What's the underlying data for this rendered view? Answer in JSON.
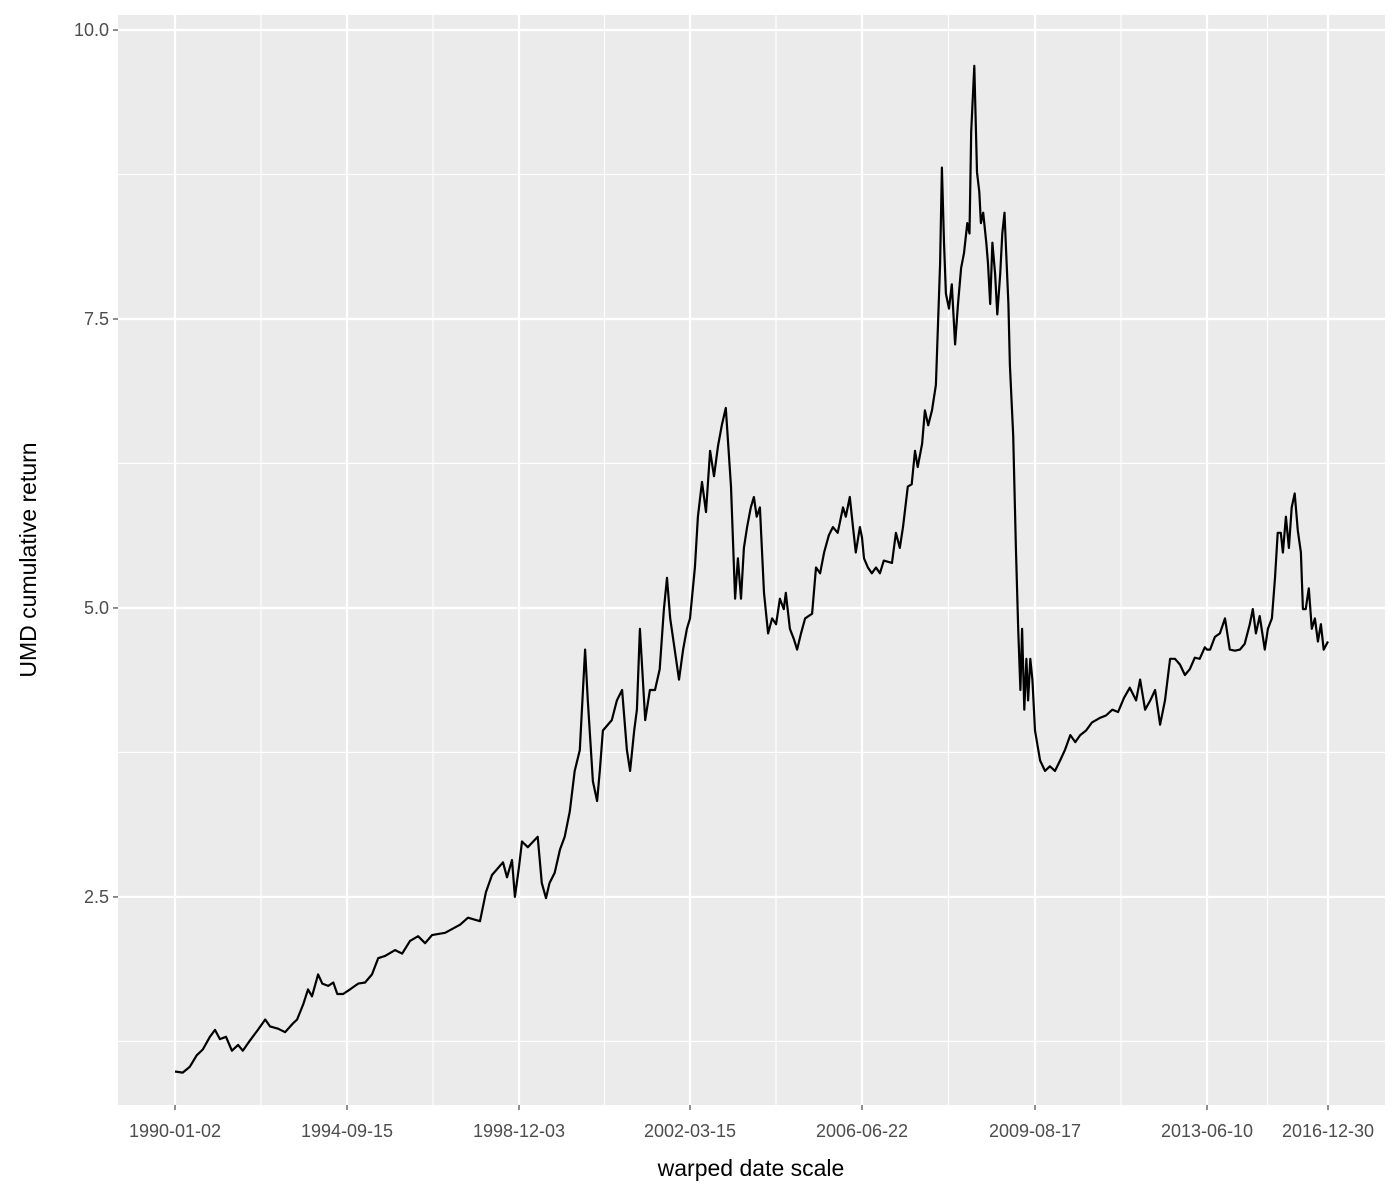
{
  "chart_data": {
    "type": "line",
    "xlabel": "warped date scale",
    "ylabel": "UMD cumulative return",
    "x_scale": "warped date",
    "x_ticks": [
      "1990-01-02",
      "1994-09-15",
      "1998-12-03",
      "2002-03-15",
      "2006-06-22",
      "2009-08-17",
      "2013-06-10",
      "2016-12-30"
    ],
    "y_ticks": [
      2.5,
      5.0,
      7.5,
      10.0
    ],
    "y_tick_labels": [
      "2.5",
      "5.0",
      "7.5",
      "10.0"
    ],
    "y_minor_ticks": [
      1.25,
      3.75,
      6.25,
      8.75
    ],
    "ylim": [
      0.7,
      10.13
    ],
    "grid": true,
    "legend": "none",
    "colors": {
      "panel": "#ebebeb",
      "grid": "#ffffff",
      "line": "#000000",
      "tick_text": "#4d4d4d"
    },
    "series": [
      {
        "x": [
          "1990-01-02",
          "1990-03-20",
          "1990-05-29",
          "1990-08-07",
          "1990-10-07",
          "1990-12-16",
          "1991-02-05",
          "1991-03-26",
          "1991-05-26",
          "1991-07-24",
          "1991-09-24",
          "1991-11-10",
          "1992-01-22",
          "1992-04-09",
          "1992-06-20",
          "1992-08-07",
          "1992-10-27",
          "1993-01-05",
          "1993-03-18",
          "1993-05-05",
          "1993-07-05",
          "1993-08-22",
          "1993-10-01",
          "1993-12-01",
          "1994-01-11",
          "1994-03-11",
          "1994-05-01",
          "1994-06-10",
          "1994-08-07",
          "1994-10-12",
          "1994-12-24",
          "1995-02-24",
          "1995-04-27",
          "1995-06-21",
          "1995-08-22",
          "1995-11-20",
          "1996-01-22",
          "1996-04-01",
          "1996-06-13",
          "1996-08-14",
          "1996-10-15",
          "1997-02-09",
          "1997-06-24",
          "1997-09-02",
          "1997-12-19",
          "1998-02-10",
          "1998-04-05",
          "1998-07-13",
          "1998-08-18",
          "1998-10-01",
          "1998-10-27",
          "1998-12-03",
          "1998-12-24",
          "1999-02-03",
          "1999-04-13",
          "1999-05-12",
          "1999-06-10",
          "1999-07-05",
          "1999-08-10",
          "1999-09-16",
          "1999-10-19",
          "1999-11-24",
          "1999-12-28",
          "2000-02-02",
          "2000-03-10",
          "2000-03-29",
          "2000-05-04",
          "2000-06-02",
          "2000-06-21",
          "2000-07-13",
          "2000-09-13",
          "2000-10-19",
          "2000-11-24",
          "2000-12-28",
          "2001-01-19",
          "2001-02-17",
          "2001-03-08",
          "2001-03-29",
          "2001-05-05",
          "2001-06-07",
          "2001-07-13",
          "2001-08-15",
          "2001-09-13",
          "2001-10-05",
          "2001-10-27",
          "2001-11-28",
          "2001-12-28",
          "2002-01-26",
          "2002-02-21",
          "2002-03-15",
          "2002-04-28",
          "2002-05-26",
          "2002-07-02",
          "2002-08-07",
          "2002-09-13",
          "2002-10-19",
          "2002-11-24",
          "2002-12-28",
          "2003-02-03",
          "2003-03-22",
          "2003-04-28",
          "2003-05-23",
          "2003-06-21",
          "2003-07-17",
          "2003-08-15",
          "2003-09-17",
          "2003-10-16",
          "2003-11-10",
          "2003-12-09",
          "2004-01-15",
          "2004-02-21",
          "2004-03-29",
          "2004-05-04",
          "2004-06-07",
          "2004-07-13",
          "2004-07-31",
          "2004-09-06",
          "2004-10-12",
          "2004-11-10",
          "2004-12-16",
          "2005-01-22",
          "2005-03-26",
          "2005-05-01",
          "2005-06-07",
          "2005-07-13",
          "2005-08-26",
          "2005-10-01",
          "2005-11-14",
          "2006-01-01",
          "2006-01-26",
          "2006-03-03",
          "2006-04-01",
          "2006-04-27",
          "2006-06-03",
          "2006-06-22",
          "2006-07-05",
          "2006-07-31",
          "2006-08-26",
          "2006-09-23",
          "2006-10-19",
          "2006-11-14",
          "2007-01-08",
          "2007-02-03",
          "2007-03-01",
          "2007-03-22",
          "2007-04-23",
          "2007-05-19",
          "2007-06-10",
          "2007-06-28",
          "2007-07-27",
          "2007-08-15",
          "2007-09-06",
          "2007-10-01",
          "2007-10-27",
          "2007-11-24",
          "2007-12-06",
          "2007-12-20",
          "2008-01-02",
          "2008-01-22",
          "2008-02-10",
          "2008-03-03",
          "2008-03-22",
          "2008-04-12",
          "2008-05-01",
          "2008-05-23",
          "2008-06-07",
          "2008-06-18",
          "2008-07-09",
          "2008-07-27",
          "2008-08-11",
          "2008-08-22",
          "2008-09-06",
          "2008-09-27",
          "2008-10-08",
          "2008-10-23",
          "2008-11-06",
          "2008-11-24",
          "2008-12-09",
          "2008-12-28",
          "2009-01-11",
          "2009-01-26",
          "2009-02-06",
          "2009-02-21",
          "2009-03-03",
          "2009-03-25",
          "2009-04-12",
          "2009-04-27",
          "2009-05-12",
          "2009-05-23",
          "2009-06-07",
          "2009-06-21",
          "2009-07-02",
          "2009-07-17",
          "2009-07-31",
          "2009-08-17",
          "2009-09-27",
          "2009-11-06",
          "2009-12-16",
          "2010-01-26",
          "2010-03-08",
          "2010-04-16",
          "2010-05-30",
          "2010-07-09",
          "2010-08-18",
          "2010-10-05",
          "2010-11-22",
          "2011-01-26",
          "2011-03-15",
          "2011-05-05",
          "2011-06-21",
          "2011-08-07",
          "2011-09-24",
          "2011-11-14",
          "2011-12-16",
          "2012-01-26",
          "2012-03-08",
          "2012-04-16",
          "2012-05-26",
          "2012-07-05",
          "2012-08-15",
          "2012-09-24",
          "2012-11-03",
          "2012-12-13",
          "2013-01-22",
          "2013-03-03",
          "2013-04-12",
          "2013-05-23",
          "2013-06-10",
          "2013-07-13",
          "2013-09-03",
          "2013-10-27",
          "2013-12-20",
          "2014-02-10",
          "2014-04-05",
          "2014-05-30",
          "2014-07-20",
          "2014-09-13",
          "2014-10-15",
          "2014-11-17",
          "2014-12-28",
          "2015-02-21",
          "2015-03-26",
          "2015-05-08",
          "2015-06-10",
          "2015-07-09",
          "2015-08-11",
          "2015-09-03",
          "2015-10-05",
          "2015-11-06",
          "2015-12-06",
          "2016-01-08",
          "2016-02-10",
          "2016-03-14",
          "2016-04-05",
          "2016-05-05",
          "2016-06-07",
          "2016-07-09",
          "2016-08-11",
          "2016-09-13",
          "2016-10-15",
          "2016-11-14",
          "2016-12-30"
        ],
        "y": [
          0.99,
          0.98,
          1.03,
          1.13,
          1.18,
          1.29,
          1.35,
          1.27,
          1.29,
          1.17,
          1.22,
          1.17,
          1.26,
          1.35,
          1.44,
          1.38,
          1.36,
          1.33,
          1.4,
          1.44,
          1.57,
          1.7,
          1.64,
          1.83,
          1.75,
          1.73,
          1.76,
          1.66,
          1.66,
          1.7,
          1.75,
          1.76,
          1.83,
          1.97,
          1.99,
          2.04,
          2.01,
          2.12,
          2.16,
          2.1,
          2.17,
          2.19,
          2.26,
          2.32,
          2.29,
          2.54,
          2.69,
          2.8,
          2.67,
          2.82,
          2.5,
          2.76,
          2.98,
          2.93,
          3.02,
          2.62,
          2.49,
          2.62,
          2.71,
          2.91,
          3.02,
          3.24,
          3.59,
          3.77,
          4.64,
          4.2,
          3.5,
          3.33,
          3.59,
          3.94,
          4.03,
          4.2,
          4.29,
          3.77,
          3.59,
          3.94,
          4.12,
          4.82,
          4.03,
          4.29,
          4.29,
          4.47,
          4.99,
          5.26,
          4.91,
          4.64,
          4.38,
          4.64,
          4.82,
          4.91,
          5.35,
          5.79,
          6.09,
          5.83,
          6.36,
          6.14,
          6.4,
          6.58,
          6.73,
          6.05,
          5.08,
          5.43,
          5.08,
          5.52,
          5.7,
          5.87,
          5.96,
          5.79,
          5.87,
          5.13,
          4.78,
          4.91,
          4.86,
          5.08,
          4.99,
          5.13,
          4.82,
          4.73,
          4.64,
          4.78,
          4.91,
          4.95,
          5.35,
          5.3,
          5.48,
          5.63,
          5.7,
          5.65,
          5.87,
          5.79,
          5.96,
          5.7,
          5.48,
          5.7,
          5.61,
          5.43,
          5.35,
          5.3,
          5.35,
          5.3,
          5.41,
          5.39,
          5.65,
          5.52,
          5.7,
          6.05,
          6.07,
          6.36,
          6.22,
          6.42,
          6.71,
          6.58,
          6.71,
          6.93,
          7.98,
          8.81,
          8.16,
          7.72,
          7.59,
          7.8,
          7.28,
          7.63,
          7.94,
          8.07,
          8.33,
          8.24,
          9.12,
          9.69,
          8.77,
          8.6,
          8.33,
          8.42,
          8.16,
          7.98,
          7.63,
          8.16,
          7.89,
          7.54,
          7.89,
          8.24,
          8.42,
          8.07,
          7.63,
          7.1,
          6.49,
          5.52,
          4.82,
          4.29,
          4.82,
          4.12,
          4.56,
          4.2,
          4.56,
          4.38,
          3.94,
          3.68,
          3.59,
          3.63,
          3.59,
          3.68,
          3.77,
          3.9,
          3.84,
          3.9,
          3.94,
          4.01,
          4.05,
          4.07,
          4.12,
          4.1,
          4.22,
          4.31,
          4.2,
          4.38,
          4.12,
          4.2,
          4.29,
          3.99,
          4.2,
          4.56,
          4.56,
          4.51,
          4.42,
          4.47,
          4.57,
          4.56,
          4.66,
          4.64,
          4.64,
          4.75,
          4.78,
          4.91,
          4.64,
          4.63,
          4.64,
          4.69,
          4.86,
          4.99,
          4.78,
          4.93,
          4.64,
          4.82,
          4.91,
          5.26,
          5.65,
          5.65,
          5.48,
          5.79,
          5.52,
          5.87,
          5.99,
          5.67,
          5.48,
          4.99,
          4.99,
          5.17,
          4.82,
          4.91,
          4.71,
          4.86,
          4.64,
          4.71
        ]
      }
    ]
  }
}
